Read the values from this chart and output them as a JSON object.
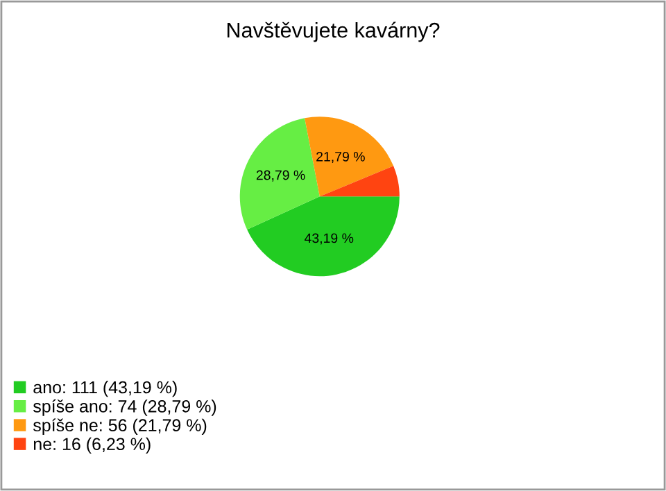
{
  "chart_data": {
    "type": "pie",
    "title": "Navštěvujete kavárny?",
    "categories": [
      "ano: 111 (43,19 %)",
      "spíše ano: 74 (28,79 %)",
      "spíše ne: 56 (21,79 %)",
      "ne: 16 (6,23 %)"
    ],
    "values": [
      43.19,
      28.79,
      21.79,
      6.23
    ],
    "value_labels": [
      "43,19 %",
      "28,79 %",
      "21,79 %",
      null
    ],
    "colors": [
      "#22cc22",
      "#66ee44",
      "#ff9911",
      "#ff4411"
    ],
    "legend": "bottom left"
  }
}
